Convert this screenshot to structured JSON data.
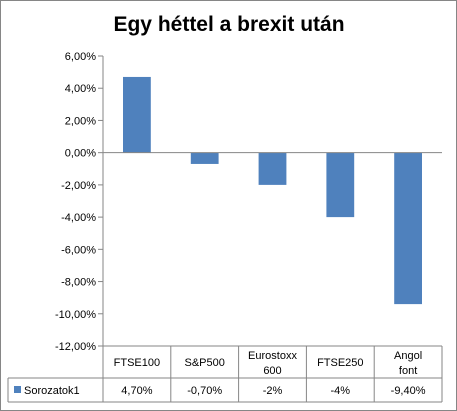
{
  "chart_data": {
    "type": "bar",
    "title": "Egy héttel a brexit után",
    "categories": [
      [
        "FTSE100"
      ],
      [
        "S&P500"
      ],
      [
        "Eurostoxx",
        "600"
      ],
      [
        "FTSE250"
      ],
      [
        "Angol",
        "font"
      ]
    ],
    "series": [
      {
        "name": "Sorozatok1",
        "values": [
          4.7,
          -0.7,
          -2.0,
          -4.0,
          -9.4
        ],
        "labels": [
          "4,70%",
          "-0,70%",
          "-2%",
          "-4%",
          "-9,40%"
        ],
        "color": "#4f81bd"
      }
    ],
    "ylim": [
      -12,
      6
    ],
    "ytick_step": 2,
    "ytick_labels": [
      "6,00%",
      "4,00%",
      "2,00%",
      "0,00%",
      "-2,00%",
      "-4,00%",
      "-6,00%",
      "-8,00%",
      "-10,00%",
      "-12,00%"
    ],
    "grid": false,
    "legend": "data-table"
  }
}
